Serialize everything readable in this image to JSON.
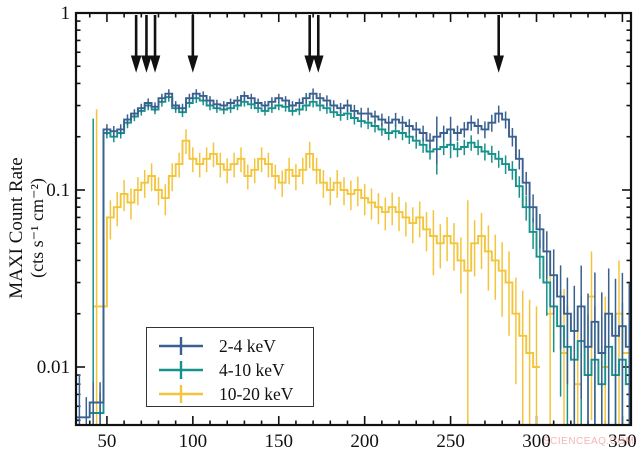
{
  "figure": {
    "ylabel_line1": "MAXI Count Rate",
    "ylabel_line2": "(cts s⁻¹ cm⁻²)"
  },
  "watermark": {
    "text": "SCIENCEAQ.COM",
    "color": "#f08a80"
  },
  "chart_data": {
    "type": "line",
    "subtype": "step-histogram-light-curve-with-errorbars",
    "title": "",
    "xlabel": "",
    "ylabel": "MAXI Count Rate (cts s⁻¹ cm⁻²)",
    "x_axis": {
      "scale": "linear",
      "min": 32,
      "max": 355,
      "major_ticks": [
        50,
        100,
        150,
        200,
        250,
        300,
        350
      ],
      "minor_tick_interval": 10
    },
    "y_axis": {
      "scale": "log",
      "min": 0.0047,
      "max": 1,
      "major_ticks": [
        {
          "v": 1,
          "label": "1"
        },
        {
          "v": 0.1,
          "label": "0.1"
        },
        {
          "v": 0.01,
          "label": "0.01"
        }
      ]
    },
    "grid": false,
    "legend_position": "lower-left-inside",
    "bin_width": 4,
    "arrow_markers_x": [
      67,
      73,
      78,
      100,
      168,
      173,
      278
    ],
    "arrow_color": "#111111",
    "series": [
      {
        "name": "10-20 keV",
        "color": "#f3c53d",
        "points": [
          [
            44,
            0.022,
            12
          ],
          [
            48,
            0.022,
            0.4
          ],
          [
            52,
            0.07,
            0.25
          ],
          [
            56,
            0.08,
            0.22
          ],
          [
            60,
            0.095,
            0.2
          ],
          [
            64,
            0.085,
            0.2
          ],
          [
            68,
            0.1,
            0.18
          ],
          [
            72,
            0.11,
            0.18
          ],
          [
            76,
            0.12,
            0.18
          ],
          [
            80,
            0.1,
            0.18
          ],
          [
            84,
            0.09,
            0.2
          ],
          [
            88,
            0.12,
            0.18
          ],
          [
            92,
            0.14,
            0.16
          ],
          [
            96,
            0.19,
            0.16
          ],
          [
            100,
            0.15,
            0.16
          ],
          [
            104,
            0.14,
            0.16
          ],
          [
            108,
            0.15,
            0.16
          ],
          [
            112,
            0.16,
            0.16
          ],
          [
            116,
            0.14,
            0.16
          ],
          [
            120,
            0.13,
            0.16
          ],
          [
            124,
            0.14,
            0.16
          ],
          [
            128,
            0.15,
            0.16
          ],
          [
            132,
            0.12,
            0.16
          ],
          [
            136,
            0.13,
            0.16
          ],
          [
            140,
            0.15,
            0.16
          ],
          [
            144,
            0.14,
            0.16
          ],
          [
            148,
            0.12,
            0.16
          ],
          [
            152,
            0.11,
            0.17
          ],
          [
            156,
            0.13,
            0.17
          ],
          [
            160,
            0.12,
            0.17
          ],
          [
            164,
            0.13,
            0.17
          ],
          [
            168,
            0.16,
            0.17
          ],
          [
            172,
            0.13,
            0.17
          ],
          [
            176,
            0.11,
            0.18
          ],
          [
            180,
            0.1,
            0.18
          ],
          [
            184,
            0.11,
            0.18
          ],
          [
            188,
            0.1,
            0.18
          ],
          [
            192,
            0.095,
            0.19
          ],
          [
            196,
            0.1,
            0.19
          ],
          [
            200,
            0.09,
            0.2
          ],
          [
            204,
            0.085,
            0.2
          ],
          [
            208,
            0.08,
            0.2
          ],
          [
            212,
            0.075,
            0.21
          ],
          [
            216,
            0.08,
            0.21
          ],
          [
            220,
            0.075,
            0.22
          ],
          [
            224,
            0.07,
            0.22
          ],
          [
            228,
            0.065,
            0.23
          ],
          [
            232,
            0.07,
            0.23
          ],
          [
            236,
            0.06,
            0.25
          ],
          [
            240,
            0.055,
            0.4
          ],
          [
            244,
            0.05,
            0.28
          ],
          [
            248,
            0.055,
            0.28
          ],
          [
            252,
            0.05,
            0.3
          ],
          [
            256,
            0.04,
            0.35
          ],
          [
            260,
            0.035,
            1.5
          ],
          [
            264,
            0.05,
            0.35
          ],
          [
            268,
            0.055,
            0.35
          ],
          [
            272,
            0.045,
            0.4
          ],
          [
            276,
            0.04,
            0.4
          ],
          [
            280,
            0.035,
            0.45
          ],
          [
            284,
            0.03,
            0.5
          ],
          [
            288,
            0.02,
            0.6
          ],
          [
            292,
            0.015,
            0.8
          ],
          [
            296,
            0.012,
            1.0
          ],
          [
            300,
            0.01,
            1.2
          ],
          [
            308,
            0.02,
            0.9
          ],
          [
            316,
            0.012,
            1.3
          ],
          [
            324,
            0.008,
            1.6
          ],
          [
            332,
            0.025,
            0.8
          ],
          [
            340,
            0.01,
            1.5
          ],
          [
            348,
            0.02,
            1.0
          ],
          [
            354,
            0.012,
            1.4
          ]
        ]
      },
      {
        "name": "4-10 keV",
        "color": "#17918c",
        "points": [
          [
            42,
            0.0055,
            45
          ],
          [
            46,
            0.0055,
            0.3
          ],
          [
            50,
            0.21,
            0.07
          ],
          [
            54,
            0.2,
            0.07
          ],
          [
            58,
            0.21,
            0.07
          ],
          [
            62,
            0.24,
            0.07
          ],
          [
            66,
            0.26,
            0.06
          ],
          [
            70,
            0.28,
            0.06
          ],
          [
            74,
            0.3,
            0.06
          ],
          [
            78,
            0.285,
            0.06
          ],
          [
            82,
            0.315,
            0.06
          ],
          [
            86,
            0.335,
            0.06
          ],
          [
            90,
            0.29,
            0.06
          ],
          [
            94,
            0.275,
            0.06
          ],
          [
            98,
            0.31,
            0.06
          ],
          [
            102,
            0.33,
            0.06
          ],
          [
            106,
            0.32,
            0.06
          ],
          [
            110,
            0.3,
            0.06
          ],
          [
            114,
            0.29,
            0.06
          ],
          [
            118,
            0.285,
            0.06
          ],
          [
            122,
            0.29,
            0.06
          ],
          [
            126,
            0.3,
            0.06
          ],
          [
            130,
            0.315,
            0.06
          ],
          [
            134,
            0.305,
            0.06
          ],
          [
            138,
            0.29,
            0.06
          ],
          [
            142,
            0.28,
            0.06
          ],
          [
            146,
            0.29,
            0.06
          ],
          [
            150,
            0.3,
            0.06
          ],
          [
            154,
            0.295,
            0.06
          ],
          [
            158,
            0.28,
            0.06
          ],
          [
            162,
            0.285,
            0.07
          ],
          [
            166,
            0.3,
            0.07
          ],
          [
            170,
            0.315,
            0.07
          ],
          [
            174,
            0.3,
            0.07
          ],
          [
            178,
            0.29,
            0.07
          ],
          [
            182,
            0.275,
            0.07
          ],
          [
            186,
            0.265,
            0.07
          ],
          [
            190,
            0.27,
            0.08
          ],
          [
            194,
            0.255,
            0.08
          ],
          [
            198,
            0.245,
            0.08
          ],
          [
            202,
            0.24,
            0.08
          ],
          [
            206,
            0.23,
            0.08
          ],
          [
            210,
            0.22,
            0.08
          ],
          [
            214,
            0.21,
            0.09
          ],
          [
            218,
            0.215,
            0.09
          ],
          [
            222,
            0.21,
            0.09
          ],
          [
            226,
            0.2,
            0.09
          ],
          [
            230,
            0.19,
            0.1
          ],
          [
            234,
            0.18,
            0.1
          ],
          [
            238,
            0.165,
            0.1
          ],
          [
            242,
            0.17,
            0.28
          ],
          [
            246,
            0.175,
            0.1
          ],
          [
            250,
            0.18,
            0.16
          ],
          [
            254,
            0.17,
            0.1
          ],
          [
            258,
            0.175,
            0.1
          ],
          [
            262,
            0.185,
            0.1
          ],
          [
            266,
            0.175,
            0.1
          ],
          [
            270,
            0.165,
            0.11
          ],
          [
            274,
            0.16,
            0.11
          ],
          [
            278,
            0.15,
            0.11
          ],
          [
            282,
            0.14,
            0.12
          ],
          [
            286,
            0.13,
            0.12
          ],
          [
            290,
            0.105,
            0.14
          ],
          [
            294,
            0.08,
            0.16
          ],
          [
            298,
            0.058,
            0.2
          ],
          [
            302,
            0.042,
            0.25
          ],
          [
            306,
            0.03,
            0.35
          ],
          [
            310,
            0.022,
            0.45
          ],
          [
            314,
            0.017,
            0.6
          ],
          [
            318,
            0.013,
            0.7
          ],
          [
            322,
            0.011,
            0.9
          ],
          [
            326,
            0.014,
            0.8
          ],
          [
            330,
            0.009,
            1.2
          ],
          [
            334,
            0.011,
            1.0
          ],
          [
            338,
            0.008,
            1.4
          ],
          [
            342,
            0.013,
            0.9
          ],
          [
            346,
            0.009,
            1.2
          ],
          [
            350,
            0.011,
            1.1
          ],
          [
            354,
            0.008,
            1.5
          ]
        ]
      },
      {
        "name": "2-4 keV",
        "color": "#3a608f",
        "points": [
          [
            34,
            0.0052,
            0.75
          ],
          [
            38,
            0.0052,
            0.3
          ],
          [
            42,
            0.0063,
            0.3
          ],
          [
            46,
            0.0063,
            0.3
          ],
          [
            50,
            0.22,
            0.07
          ],
          [
            54,
            0.215,
            0.07
          ],
          [
            58,
            0.22,
            0.07
          ],
          [
            62,
            0.25,
            0.07
          ],
          [
            66,
            0.27,
            0.06
          ],
          [
            70,
            0.29,
            0.06
          ],
          [
            74,
            0.31,
            0.06
          ],
          [
            78,
            0.295,
            0.06
          ],
          [
            82,
            0.33,
            0.06
          ],
          [
            86,
            0.35,
            0.06
          ],
          [
            90,
            0.3,
            0.06
          ],
          [
            94,
            0.29,
            0.06
          ],
          [
            98,
            0.33,
            0.06
          ],
          [
            102,
            0.35,
            0.06
          ],
          [
            106,
            0.34,
            0.06
          ],
          [
            110,
            0.32,
            0.06
          ],
          [
            114,
            0.305,
            0.06
          ],
          [
            118,
            0.3,
            0.06
          ],
          [
            122,
            0.31,
            0.06
          ],
          [
            126,
            0.32,
            0.06
          ],
          [
            130,
            0.34,
            0.06
          ],
          [
            134,
            0.33,
            0.06
          ],
          [
            138,
            0.31,
            0.06
          ],
          [
            142,
            0.3,
            0.06
          ],
          [
            146,
            0.315,
            0.06
          ],
          [
            150,
            0.33,
            0.06
          ],
          [
            154,
            0.32,
            0.06
          ],
          [
            158,
            0.3,
            0.06
          ],
          [
            162,
            0.31,
            0.06
          ],
          [
            166,
            0.33,
            0.07
          ],
          [
            170,
            0.35,
            0.07
          ],
          [
            174,
            0.33,
            0.07
          ],
          [
            178,
            0.32,
            0.07
          ],
          [
            182,
            0.3,
            0.07
          ],
          [
            186,
            0.29,
            0.07
          ],
          [
            190,
            0.3,
            0.08
          ],
          [
            194,
            0.28,
            0.08
          ],
          [
            198,
            0.27,
            0.08
          ],
          [
            202,
            0.27,
            0.08
          ],
          [
            206,
            0.26,
            0.08
          ],
          [
            210,
            0.25,
            0.08
          ],
          [
            214,
            0.24,
            0.09
          ],
          [
            218,
            0.25,
            0.09
          ],
          [
            222,
            0.24,
            0.09
          ],
          [
            226,
            0.23,
            0.09
          ],
          [
            230,
            0.22,
            0.1
          ],
          [
            234,
            0.21,
            0.1
          ],
          [
            238,
            0.19,
            0.1
          ],
          [
            242,
            0.2,
            0.3
          ],
          [
            246,
            0.21,
            0.1
          ],
          [
            250,
            0.22,
            0.18
          ],
          [
            254,
            0.21,
            0.1
          ],
          [
            258,
            0.22,
            0.1
          ],
          [
            262,
            0.24,
            0.1
          ],
          [
            266,
            0.23,
            0.1
          ],
          [
            270,
            0.22,
            0.11
          ],
          [
            274,
            0.24,
            0.11
          ],
          [
            278,
            0.27,
            0.11
          ],
          [
            282,
            0.25,
            0.11
          ],
          [
            286,
            0.2,
            0.12
          ],
          [
            290,
            0.15,
            0.13
          ],
          [
            294,
            0.11,
            0.15
          ],
          [
            298,
            0.08,
            0.18
          ],
          [
            302,
            0.06,
            0.22
          ],
          [
            306,
            0.045,
            0.3
          ],
          [
            310,
            0.033,
            0.4
          ],
          [
            314,
            0.025,
            0.5
          ],
          [
            318,
            0.02,
            0.6
          ],
          [
            322,
            0.016,
            0.8
          ],
          [
            326,
            0.022,
            0.7
          ],
          [
            330,
            0.013,
            1.0
          ],
          [
            334,
            0.018,
            0.9
          ],
          [
            338,
            0.012,
            1.2
          ],
          [
            342,
            0.02,
            0.8
          ],
          [
            346,
            0.015,
            1.1
          ],
          [
            350,
            0.017,
            1.0
          ],
          [
            354,
            0.013,
            1.3
          ]
        ]
      }
    ]
  }
}
